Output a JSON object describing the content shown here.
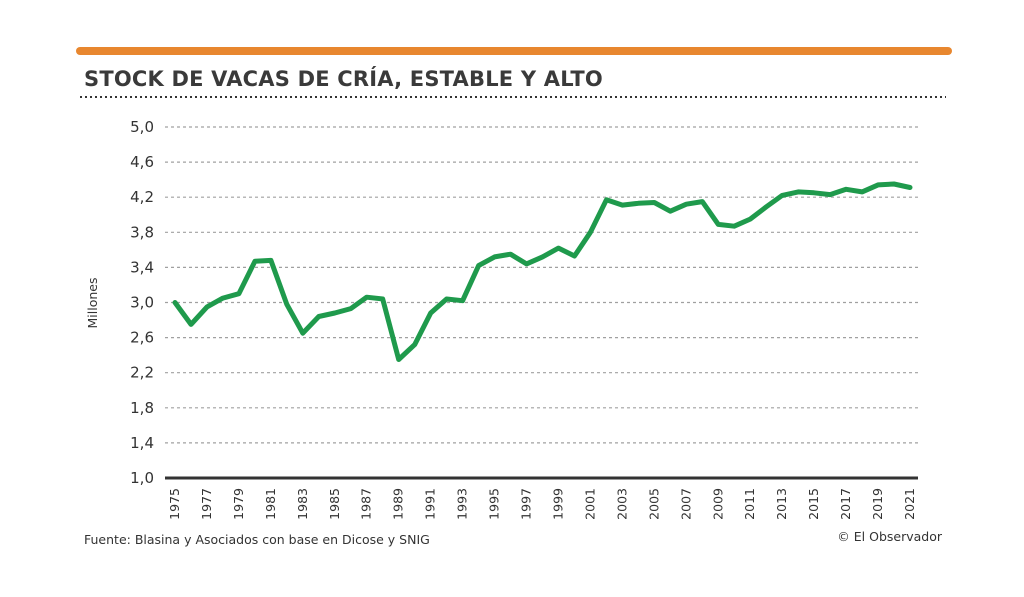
{
  "colors": {
    "accent_bar": "#e8872f",
    "line": "#1f9a4c",
    "grid": "#a0a0a0",
    "baseline": "#333333",
    "text": "#333333"
  },
  "chart_data": {
    "type": "line",
    "title": "STOCK DE VACAS DE CRÍA, ESTABLE Y ALTO",
    "xlabel": "",
    "ylabel": "Millones",
    "ylim": [
      1.0,
      5.0
    ],
    "yticks": [
      "1,0",
      "1,4",
      "1,8",
      "2,2",
      "2,6",
      "3,0",
      "3,4",
      "3,8",
      "4,2",
      "4,6",
      "5,0"
    ],
    "ytick_values": [
      1.0,
      1.4,
      1.8,
      2.2,
      2.6,
      3.0,
      3.4,
      3.8,
      4.2,
      4.6,
      5.0
    ],
    "xtick_labels": [
      "1975",
      "1977",
      "1979",
      "1981",
      "1983",
      "1985",
      "1987",
      "1989",
      "1991",
      "1993",
      "1995",
      "1997",
      "1999",
      "2001",
      "2003",
      "2005",
      "2007",
      "2009",
      "2011",
      "2013",
      "2015",
      "2017",
      "2019",
      "2021"
    ],
    "grid": true,
    "series": [
      {
        "name": "Stock de vacas de cría",
        "x": [
          1975,
          1976,
          1977,
          1978,
          1979,
          1980,
          1981,
          1982,
          1983,
          1984,
          1985,
          1986,
          1987,
          1988,
          1989,
          1990,
          1991,
          1992,
          1993,
          1994,
          1995,
          1996,
          1997,
          1998,
          1999,
          2000,
          2001,
          2002,
          2003,
          2004,
          2005,
          2006,
          2007,
          2008,
          2009,
          2010,
          2011,
          2012,
          2013,
          2014,
          2015,
          2016,
          2017,
          2018,
          2019,
          2020,
          2021
        ],
        "values": [
          3.0,
          2.75,
          2.95,
          3.05,
          3.1,
          3.47,
          3.48,
          2.98,
          2.65,
          2.84,
          2.88,
          2.93,
          3.06,
          3.04,
          2.35,
          2.52,
          2.88,
          3.04,
          3.02,
          3.42,
          3.52,
          3.55,
          3.44,
          3.52,
          3.62,
          3.53,
          3.8,
          4.17,
          4.11,
          4.13,
          4.14,
          4.04,
          4.12,
          4.15,
          3.89,
          3.87,
          3.95,
          4.09,
          4.22,
          4.26,
          4.25,
          4.23,
          4.29,
          4.26,
          4.34,
          4.35,
          4.31
        ]
      }
    ]
  },
  "footer": {
    "source": "Fuente: Blasina y Asociados con base en  Dicose y SNIG",
    "credit": "© El Observador"
  }
}
